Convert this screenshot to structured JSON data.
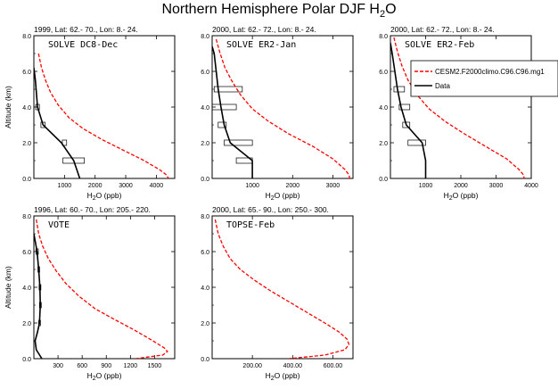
{
  "figure": {
    "title": "Northern Hemisphere Polar DJF H",
    "title_sub": "2",
    "title_tail": "O"
  },
  "colors": {
    "model": "#ff0000",
    "data": "#000000"
  },
  "legend": {
    "placement": "top-right (inside third panel)",
    "entries": [
      {
        "label": "CESM2.F2000climo.C96.C96.mg1",
        "style": "dashed",
        "color": "#ff0000"
      },
      {
        "label": "Data",
        "style": "solid",
        "color": "#000000"
      }
    ]
  },
  "chart_data": [
    {
      "type": "line",
      "header": "1999, Lat: 62.- 70., Lon: 8.- 24.",
      "inset_title": "SOLVE DC8-Dec",
      "xlabel": "H2O (ppb)",
      "ylabel": "Altitude (km)",
      "xlim": [
        0,
        4600
      ],
      "ylim": [
        0,
        8
      ],
      "xticks": [
        1000,
        2000,
        3000,
        4000
      ],
      "xticklabels": [
        "1000",
        "2000",
        "3000",
        "4000"
      ],
      "yticks": [
        0,
        2,
        4,
        6,
        8
      ],
      "yticklabels": [
        "0.0",
        "2.0",
        "4.0",
        "6.0",
        "8.0"
      ],
      "series": [
        {
          "name": "CESM2.F2000climo.C96.C96.mg1",
          "style": "dashed",
          "color": "#ff0000",
          "x": [
            150,
            250,
            380,
            550,
            800,
            1150,
            1600,
            2200,
            2900,
            3600,
            4100,
            4330,
            4400
          ],
          "y": [
            7.0,
            6.2,
            5.5,
            4.8,
            4.1,
            3.4,
            2.8,
            2.2,
            1.6,
            1.0,
            0.5,
            0.2,
            0.0
          ]
        },
        {
          "name": "Data",
          "style": "solid",
          "color": "#000000",
          "x": [
            0,
            50,
            120,
            300,
            900,
            1300,
            1500
          ],
          "y": [
            6.2,
            5.5,
            4.0,
            3.0,
            2.0,
            1.0,
            0.0
          ]
        }
      ],
      "data_boxes": [
        {
          "x": 120,
          "xerr": 60,
          "y": 4.0
        },
        {
          "x": 300,
          "xerr": 70,
          "y": 3.0
        },
        {
          "x": 1000,
          "xerr": 70,
          "y": 2.0
        },
        {
          "x": 1300,
          "xerr": 350,
          "y": 1.0
        }
      ]
    },
    {
      "type": "line",
      "header": "2000, Lat: 62.- 72., Lon: 8.- 24.",
      "inset_title": "SOLVE ER2-Jan",
      "xlabel": "H2O (ppb)",
      "ylabel": "",
      "xlim": [
        0,
        3500
      ],
      "ylim": [
        0,
        8
      ],
      "xticks": [
        1000,
        2000,
        3000
      ],
      "xticklabels": [
        "1000",
        "2000",
        "3000"
      ],
      "yticks": [
        0,
        2,
        4,
        6,
        8
      ],
      "yticklabels": [
        "0.0",
        "2.0",
        "4.0",
        "6.0",
        "8.0"
      ],
      "series": [
        {
          "name": "CESM2.F2000climo.C96.C96.mg1",
          "style": "dashed",
          "color": "#ff0000",
          "x": [
            100,
            200,
            320,
            480,
            700,
            1000,
            1400,
            1900,
            2500,
            3000,
            3300,
            3400,
            3420
          ],
          "y": [
            7.8,
            7.0,
            6.2,
            5.5,
            4.7,
            3.9,
            3.2,
            2.5,
            1.8,
            1.1,
            0.5,
            0.2,
            0.0
          ]
        },
        {
          "name": "Data",
          "style": "solid",
          "color": "#000000",
          "x": [
            0,
            50,
            150,
            220,
            300,
            450,
            1000,
            1000
          ],
          "y": [
            7.4,
            7.0,
            5.0,
            4.0,
            3.0,
            2.0,
            1.0,
            0.0
          ]
        }
      ],
      "data_boxes": [
        {
          "x": 400,
          "xerr": 350,
          "y": 5.0
        },
        {
          "x": 300,
          "xerr": 300,
          "y": 4.0
        },
        {
          "x": 250,
          "xerr": 100,
          "y": 3.0
        },
        {
          "x": 650,
          "xerr": 350,
          "y": 2.0
        },
        {
          "x": 800,
          "xerr": 200,
          "y": 1.0
        }
      ]
    },
    {
      "type": "line",
      "header": "2000, Lat: 62.- 72., Lon: 8.- 24.",
      "inset_title": "SOLVE ER2-Feb",
      "xlabel": "H2O (ppb)",
      "ylabel": "",
      "xlim": [
        0,
        4000
      ],
      "ylim": [
        0,
        8
      ],
      "xticks": [
        1000,
        2000,
        3000,
        4000
      ],
      "xticklabels": [
        "1000",
        "2000",
        "3000",
        "4000"
      ],
      "yticks": [
        0,
        2,
        4,
        6,
        8
      ],
      "yticklabels": [
        "0.0",
        "2.0",
        "4.0",
        "6.0",
        "8.0"
      ],
      "series": [
        {
          "name": "CESM2.F2000climo.C96.C96.mg1",
          "style": "dashed",
          "color": "#ff0000",
          "x": [
            100,
            200,
            330,
            500,
            750,
            1100,
            1550,
            2100,
            2700,
            3300,
            3650,
            3780,
            3800
          ],
          "y": [
            7.9,
            7.1,
            6.3,
            5.5,
            4.7,
            3.9,
            3.2,
            2.5,
            1.8,
            1.1,
            0.5,
            0.2,
            0.0
          ]
        },
        {
          "name": "Data",
          "style": "solid",
          "color": "#000000",
          "x": [
            0,
            50,
            200,
            300,
            450,
            900,
            1000,
            1000
          ],
          "y": [
            7.6,
            7.0,
            5.0,
            4.0,
            3.0,
            2.0,
            1.0,
            0.0
          ]
        }
      ],
      "data_boxes": [
        {
          "x": 250,
          "xerr": 150,
          "y": 5.0
        },
        {
          "x": 400,
          "xerr": 150,
          "y": 4.0
        },
        {
          "x": 450,
          "xerr": 100,
          "y": 3.0
        },
        {
          "x": 750,
          "xerr": 250,
          "y": 2.0
        }
      ]
    },
    {
      "type": "line",
      "header": "1996, Lat: 60.- 70., Lon: 205.- 220.",
      "inset_title": "VOTE",
      "xlabel": "H2O (ppb)",
      "ylabel": "Altitude (km)",
      "xlim": [
        0,
        1750
      ],
      "ylim": [
        0,
        8
      ],
      "xticks": [
        300,
        600,
        900,
        1200,
        1500
      ],
      "xticklabels": [
        "300",
        "600",
        "900",
        "1200",
        "1500"
      ],
      "yticks": [
        0,
        2,
        4,
        6,
        8
      ],
      "yticklabels": [
        "0.0",
        "2.0",
        "4.0",
        "6.0",
        "8.0"
      ],
      "series": [
        {
          "name": "CESM2.F2000climo.C96.C96.mg1",
          "style": "dashed",
          "color": "#ff0000",
          "x": [
            30,
            60,
            110,
            180,
            280,
            400,
            560,
            760,
            1000,
            1250,
            1480,
            1620,
            1660,
            1600,
            1260
          ],
          "y": [
            7.8,
            7.0,
            6.3,
            5.6,
            4.9,
            4.2,
            3.5,
            2.8,
            2.2,
            1.6,
            1.0,
            0.6,
            0.4,
            0.2,
            0.0
          ]
        },
        {
          "name": "Data",
          "style": "solid",
          "color": "#000000",
          "x": [
            0,
            40,
            60,
            75,
            80,
            70,
            45,
            15,
            30,
            100
          ],
          "y": [
            7.0,
            6.0,
            5.0,
            4.0,
            3.0,
            2.0,
            1.5,
            1.0,
            0.5,
            0.0
          ]
        }
      ],
      "data_boxes": [
        {
          "x": 40,
          "xerr": 15,
          "y": 6.0
        },
        {
          "x": 60,
          "xerr": 10,
          "y": 5.0
        },
        {
          "x": 75,
          "xerr": 10,
          "y": 4.0
        },
        {
          "x": 80,
          "xerr": 10,
          "y": 3.0
        },
        {
          "x": 70,
          "xerr": 10,
          "y": 2.0
        }
      ]
    },
    {
      "type": "line",
      "header": "2000, Lat: 65.- 90., Lon: 250.- 300.",
      "inset_title": "TOPSE-Feb",
      "xlabel": "H2O (ppb)",
      "ylabel": "",
      "xlim": [
        0,
        700
      ],
      "ylim": [
        0,
        8
      ],
      "xticks": [
        200,
        400,
        600
      ],
      "xticklabels": [
        "200.00",
        "400.00",
        "600.00"
      ],
      "yticks": [
        0,
        2,
        4,
        6,
        8
      ],
      "yticklabels": [
        "0.0",
        "2.0",
        "4.0",
        "6.0",
        "8.0"
      ],
      "series": [
        {
          "name": "CESM2.F2000climo.C96.C96.mg1",
          "style": "dashed",
          "color": "#ff0000",
          "x": [
            15,
            30,
            55,
            90,
            140,
            210,
            290,
            380,
            470,
            560,
            630,
            670,
            680,
            660,
            560,
            380
          ],
          "y": [
            7.8,
            7.0,
            6.3,
            5.6,
            5.0,
            4.4,
            3.8,
            3.2,
            2.6,
            2.0,
            1.5,
            1.1,
            0.8,
            0.5,
            0.2,
            0.0
          ]
        }
      ],
      "data_boxes": []
    }
  ]
}
